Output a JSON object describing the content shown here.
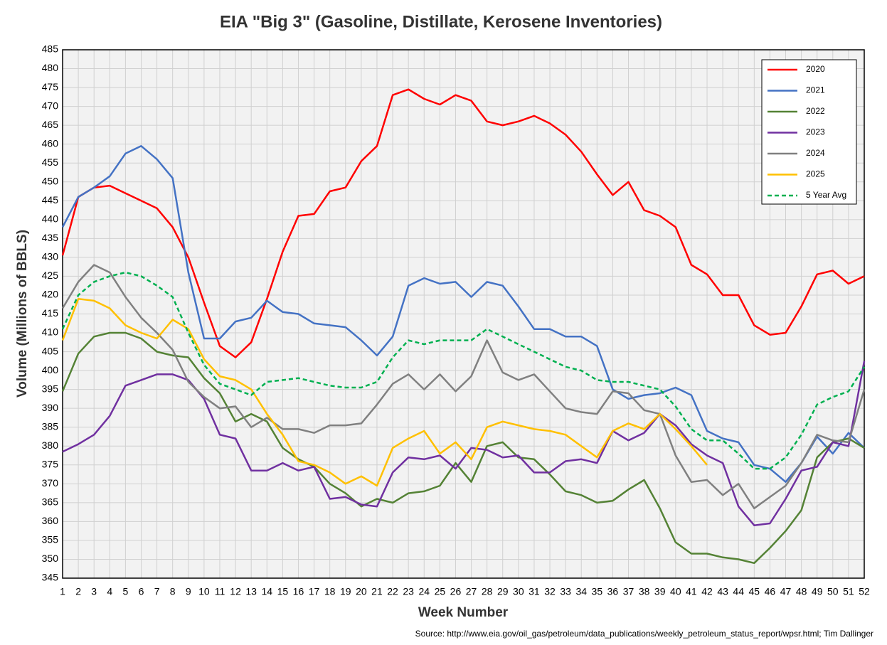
{
  "chart_data": {
    "type": "line",
    "title": "EIA \"Big 3\" (Gasoline, Distillate, Kerosene Inventories)",
    "x_label": "Week Number",
    "y_label": "Volume (Millions of BBLS)",
    "source": "Source: http://www.eia.gov/oil_gas/petroleum/data_publications/weekly_petroleum_status_report/wpsr.html; Tim Dallinger",
    "x": [
      1,
      2,
      3,
      4,
      5,
      6,
      7,
      8,
      9,
      10,
      11,
      12,
      13,
      14,
      15,
      16,
      17,
      18,
      19,
      20,
      21,
      22,
      23,
      24,
      25,
      26,
      27,
      28,
      29,
      30,
      31,
      32,
      33,
      34,
      35,
      36,
      37,
      38,
      39,
      40,
      41,
      42,
      43,
      44,
      45,
      46,
      47,
      48,
      49,
      50,
      51,
      52
    ],
    "xlim": [
      1,
      52
    ],
    "xticks": [
      1,
      2,
      3,
      4,
      5,
      6,
      7,
      8,
      9,
      10,
      11,
      12,
      13,
      14,
      15,
      16,
      17,
      18,
      19,
      20,
      21,
      22,
      23,
      24,
      25,
      26,
      27,
      28,
      29,
      30,
      31,
      32,
      33,
      34,
      35,
      36,
      37,
      38,
      39,
      40,
      41,
      42,
      43,
      44,
      45,
      46,
      47,
      48,
      49,
      50,
      51,
      52
    ],
    "ylim": [
      345,
      485
    ],
    "yticks": [
      345,
      350,
      355,
      360,
      365,
      370,
      375,
      380,
      385,
      390,
      395,
      400,
      405,
      410,
      415,
      420,
      425,
      430,
      435,
      440,
      445,
      450,
      455,
      460,
      465,
      470,
      475,
      480,
      485
    ],
    "grid": true,
    "legend": "upper right",
    "series": [
      {
        "name": "2020",
        "color": "#ff0000",
        "style": "solid",
        "values": [
          430.5,
          446,
          448.5,
          449,
          447,
          445,
          443,
          438,
          430,
          418,
          406.5,
          403.5,
          407.5,
          419,
          431.5,
          441,
          441.5,
          447.5,
          448.5,
          455.5,
          459.5,
          473,
          474.5,
          472,
          470.5,
          473,
          471.5,
          466,
          465,
          466,
          467.5,
          465.5,
          462.5,
          458,
          452,
          446.5,
          450,
          442.5,
          441,
          438,
          428,
          425.5,
          420,
          420,
          412,
          409.5,
          410,
          417,
          425.5,
          426.5,
          423,
          425
        ]
      },
      {
        "name": "2021",
        "color": "#4472c4",
        "style": "solid",
        "values": [
          438,
          446,
          448.5,
          451.5,
          457.5,
          459.5,
          456,
          451,
          426,
          408.5,
          408.5,
          413,
          414,
          418.5,
          415.5,
          415,
          412.5,
          412,
          411.5,
          408,
          404,
          409,
          422.5,
          424.5,
          423,
          423.5,
          419.5,
          423.5,
          422.5,
          417,
          411,
          411,
          409,
          409,
          406.5,
          395,
          392.5,
          393.5,
          394,
          395.5,
          393.5,
          384,
          382,
          381,
          375,
          374,
          370.5,
          375.5,
          382.5,
          378,
          383.5,
          379.5
        ]
      },
      {
        "name": "2022",
        "color": "#548235",
        "style": "solid",
        "values": [
          394.5,
          404.5,
          409,
          410,
          410,
          408.5,
          405,
          404,
          403.5,
          398,
          394,
          386.5,
          388.5,
          386.5,
          379.5,
          376.5,
          374.5,
          370,
          367.5,
          364,
          366,
          365,
          367.5,
          368,
          369.5,
          375.5,
          370.5,
          380,
          381,
          377,
          376.5,
          372.5,
          368,
          367,
          365,
          365.5,
          368.5,
          371,
          363.5,
          354.5,
          351.5,
          351.5,
          350.5,
          350,
          349,
          353,
          357.5,
          363,
          377,
          381,
          382,
          379.5
        ]
      },
      {
        "name": "2023",
        "color": "#7030a0",
        "style": "solid",
        "values": [
          378.5,
          380.5,
          383,
          388,
          396,
          397.5,
          399,
          399,
          397.5,
          392.5,
          383,
          382,
          373.5,
          373.5,
          375.5,
          373.5,
          374.5,
          366,
          366.5,
          364.5,
          364,
          373,
          377,
          376.5,
          377.5,
          374,
          379.5,
          379,
          377,
          377.5,
          373,
          373,
          376,
          376.5,
          375.5,
          384,
          381.5,
          383.5,
          388.5,
          385.5,
          380.5,
          377.5,
          375.5,
          364,
          359,
          359.5,
          366,
          373.5,
          374.5,
          381,
          380,
          402.5
        ]
      },
      {
        "name": "2024",
        "color": "#808080",
        "style": "solid",
        "values": [
          416.5,
          423.5,
          428,
          426,
          419.5,
          414,
          410,
          405.5,
          397,
          393,
          390,
          390.5,
          385,
          387.5,
          384.5,
          384.5,
          383.5,
          385.5,
          385.5,
          386,
          391,
          396.5,
          399,
          395,
          399,
          394.5,
          398.5,
          408,
          399.5,
          397.5,
          399,
          394.5,
          390,
          389,
          388.5,
          394.5,
          394,
          389.5,
          388.5,
          377.5,
          370.5,
          371,
          367,
          370,
          363.5,
          366.5,
          369.5,
          375.5,
          383,
          381.5,
          381,
          395
        ]
      },
      {
        "name": "2025",
        "color": "#ffc000",
        "style": "solid",
        "values": [
          408,
          419,
          418.5,
          416.5,
          412,
          410,
          408.5,
          413.5,
          411,
          403,
          398.5,
          397.5,
          395,
          388.5,
          383,
          376,
          375,
          373,
          370,
          372,
          369.5,
          379.5,
          382,
          384,
          378,
          381,
          376.5,
          385,
          386.5,
          385.5,
          384.5,
          384,
          383,
          380,
          377,
          384,
          386,
          384.5,
          388.5,
          384.5,
          380,
          375,
          null,
          null,
          null,
          null,
          null,
          null,
          null,
          null,
          null,
          null
        ]
      },
      {
        "name": "5 Year Avg",
        "color": "#00b050",
        "style": "dashed",
        "values": [
          411,
          420,
          423.5,
          425,
          426,
          425,
          422.5,
          419.5,
          410,
          401.5,
          396.5,
          395,
          393.5,
          397,
          397.5,
          398,
          397,
          396,
          395.5,
          395.5,
          397,
          403.5,
          408,
          407,
          408,
          408,
          408,
          411,
          409,
          407,
          405,
          403,
          401,
          400,
          397.5,
          397,
          397,
          396,
          395,
          390.5,
          384.5,
          381.5,
          381.5,
          378,
          374,
          374,
          377,
          383,
          391,
          393,
          394.5,
          401
        ]
      }
    ]
  }
}
